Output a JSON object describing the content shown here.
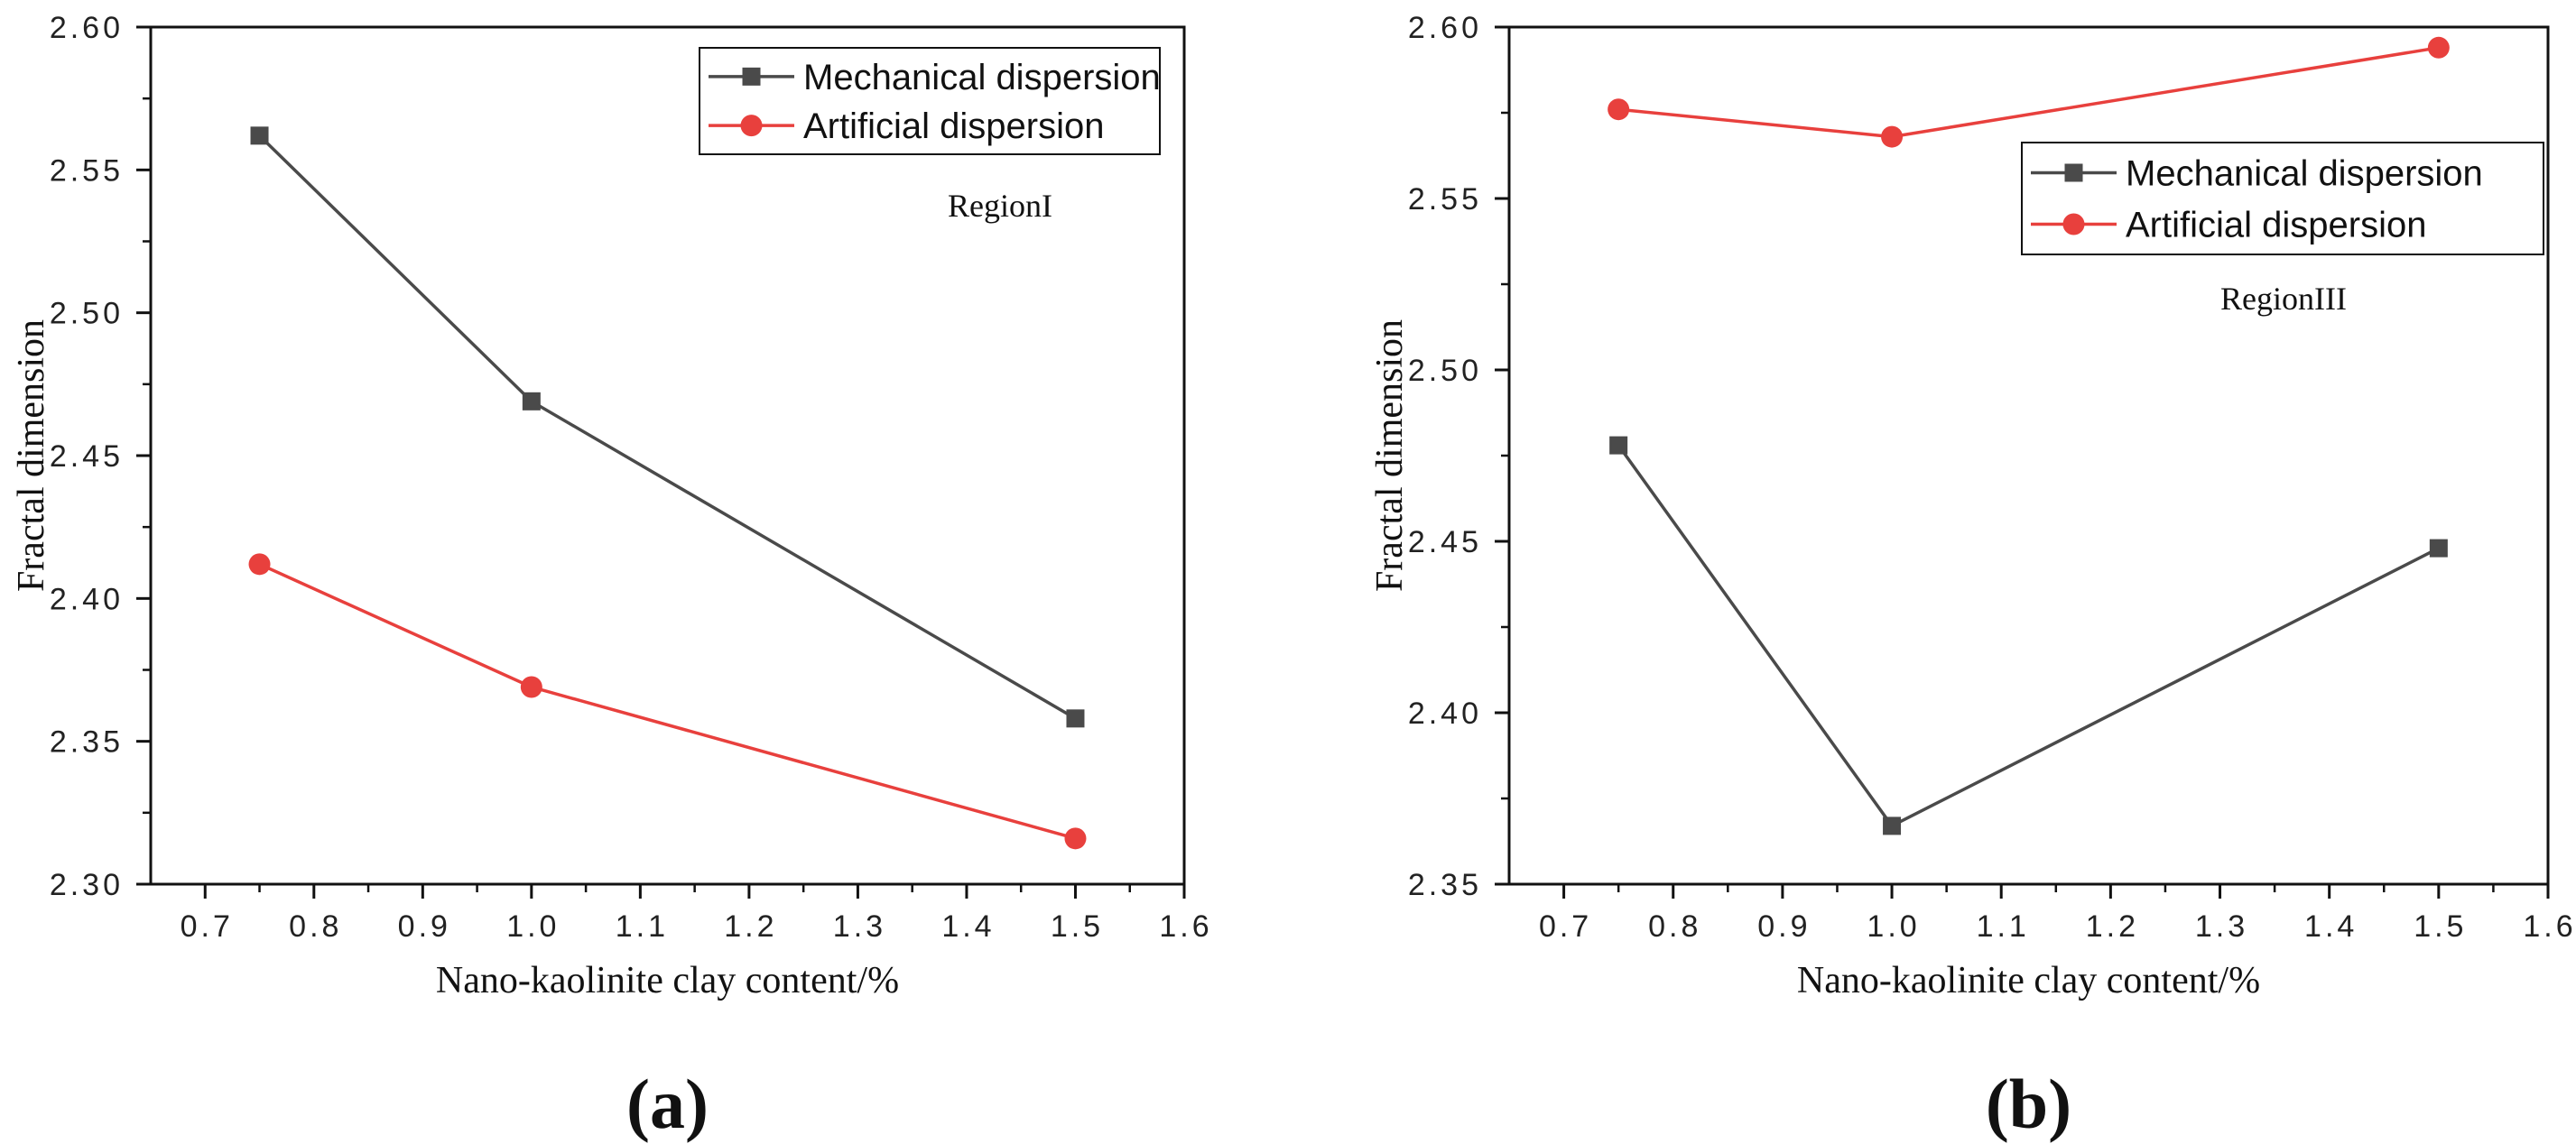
{
  "chart_data": [
    {
      "type": "line",
      "panel_label": "(a)",
      "annotation": "RegionI",
      "xlabel": "Nano-kaolinite clay content/%",
      "ylabel": "Fractal dimension",
      "xlim": [
        0.65,
        1.6
      ],
      "ylim": [
        2.3,
        2.6
      ],
      "xticks": [
        0.7,
        0.8,
        0.9,
        1.0,
        1.1,
        1.2,
        1.3,
        1.4,
        1.5,
        1.6
      ],
      "xtick_labels": [
        "0.7",
        "0.8",
        "0.9",
        "1.0",
        "1.1",
        "1.2",
        "1.3",
        "1.4",
        "1.5",
        "1.6"
      ],
      "yticks": [
        2.3,
        2.35,
        2.4,
        2.45,
        2.5,
        2.55,
        2.6
      ],
      "ytick_labels": [
        "2.30",
        "2.35",
        "2.40",
        "2.45",
        "2.50",
        "2.55",
        "2.60"
      ],
      "legend_position": "top-right",
      "x": [
        0.75,
        1.0,
        1.5
      ],
      "series": [
        {
          "name": "Mechanical dispersion",
          "values": [
            2.562,
            2.469,
            2.358
          ],
          "color": "#4a4a4a",
          "marker": "square"
        },
        {
          "name": "Artificial dispersion",
          "values": [
            2.412,
            2.369,
            2.316
          ],
          "color": "#e8403d",
          "marker": "circle"
        }
      ]
    },
    {
      "type": "line",
      "panel_label": "(b)",
      "annotation": "RegionIII",
      "xlabel": "Nano-kaolinite clay content/%",
      "ylabel": "Fractal dimension",
      "xlim": [
        0.65,
        1.6
      ],
      "ylim": [
        2.35,
        2.6
      ],
      "xticks": [
        0.7,
        0.8,
        0.9,
        1.0,
        1.1,
        1.2,
        1.3,
        1.4,
        1.5,
        1.6
      ],
      "xtick_labels": [
        "0.7",
        "0.8",
        "0.9",
        "1.0",
        "1.1",
        "1.2",
        "1.3",
        "1.4",
        "1.5",
        "1.6"
      ],
      "yticks": [
        2.35,
        2.4,
        2.45,
        2.5,
        2.55,
        2.6
      ],
      "ytick_labels": [
        "2.35",
        "2.40",
        "2.45",
        "2.50",
        "2.55",
        "2.60"
      ],
      "legend_position": "top-right",
      "x": [
        0.75,
        1.0,
        1.5
      ],
      "series": [
        {
          "name": "Mechanical dispersion",
          "values": [
            2.478,
            2.367,
            2.448
          ],
          "color": "#4a4a4a",
          "marker": "square"
        },
        {
          "name": "Artificial dispersion",
          "values": [
            2.576,
            2.568,
            2.594
          ],
          "color": "#e8403d",
          "marker": "circle"
        }
      ]
    }
  ]
}
